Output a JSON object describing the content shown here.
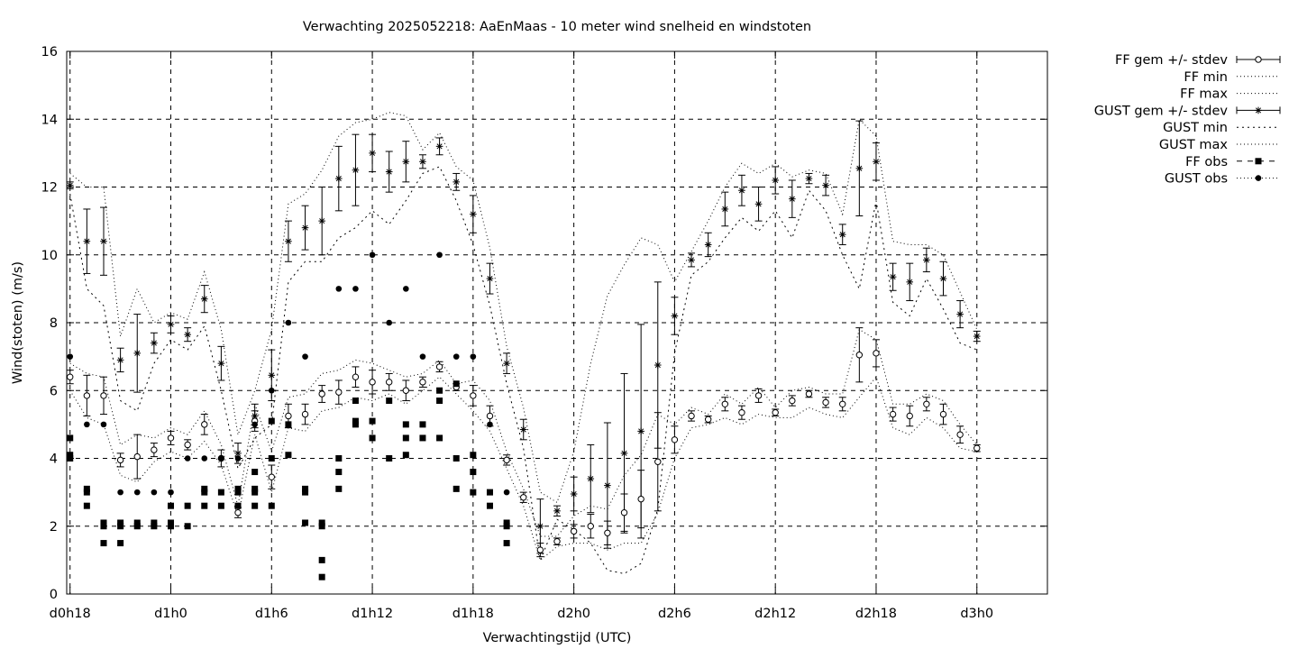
{
  "chart_data": {
    "type": "line",
    "title": "Verwachting 2025052218: AaEnMaas - 10 meter wind snelheid en windstoten",
    "xlabel": "Verwachtingstijd (UTC)",
    "ylabel": "Wind(stoten) (m/s)",
    "ylim": [
      0,
      16
    ],
    "yticks": [
      0,
      2,
      4,
      6,
      8,
      10,
      12,
      14,
      16
    ],
    "xlim": [
      17.8,
      76.2
    ],
    "xticks": [
      {
        "x": 18,
        "label": "d0h18"
      },
      {
        "x": 24,
        "label": "d1h0"
      },
      {
        "x": 30,
        "label": "d1h6"
      },
      {
        "x": 36,
        "label": "d1h12"
      },
      {
        "x": 42,
        "label": "d1h18"
      },
      {
        "x": 48,
        "label": "d2h0"
      },
      {
        "x": 54,
        "label": "d2h6"
      },
      {
        "x": 60,
        "label": "d2h12"
      },
      {
        "x": 66,
        "label": "d2h18"
      },
      {
        "x": 72,
        "label": "d3h0"
      }
    ],
    "grid": true,
    "legend_position": "outside-top-right",
    "legend": [
      "FF gem +/- stdev",
      "FF min",
      "FF max",
      "GUST gem +/- stdev",
      "GUST min",
      "GUST max",
      "FF obs",
      "GUST obs"
    ],
    "x": [
      18,
      19,
      20,
      21,
      22,
      23,
      24,
      25,
      26,
      27,
      28,
      29,
      30,
      31,
      32,
      33,
      34,
      35,
      36,
      37,
      38,
      39,
      40,
      41,
      42,
      43,
      44,
      45,
      46,
      47,
      48,
      49,
      50,
      51,
      52,
      53,
      54,
      55,
      56,
      57,
      58,
      59,
      60,
      61,
      62,
      63,
      64,
      65,
      66,
      67,
      68,
      69,
      70,
      71,
      72
    ],
    "ff_mean": [
      6.4,
      5.85,
      5.85,
      3.95,
      4.05,
      4.25,
      4.6,
      4.4,
      5.0,
      4.0,
      2.4,
      5.1,
      3.45,
      5.25,
      5.3,
      5.9,
      5.95,
      6.4,
      6.25,
      6.25,
      6.0,
      6.25,
      6.7,
      6.1,
      5.85,
      5.25,
      3.95,
      2.85,
      1.3,
      1.55,
      1.85,
      2.0,
      1.8,
      2.4,
      2.8,
      3.9,
      4.55,
      5.25,
      5.15,
      5.6,
      5.35,
      5.85,
      5.35,
      5.7,
      5.9,
      5.65,
      5.6,
      7.05,
      7.1,
      5.3,
      5.25,
      5.6,
      5.3,
      4.7,
      4.3
    ],
    "ff_sd": [
      0.2,
      0.6,
      0.55,
      0.2,
      0.65,
      0.2,
      0.2,
      0.15,
      0.3,
      0.25,
      0.15,
      0.3,
      0.35,
      0.35,
      0.3,
      0.25,
      0.35,
      0.3,
      0.35,
      0.25,
      0.3,
      0.15,
      0.15,
      0.1,
      0.3,
      0.3,
      0.15,
      0.15,
      0.2,
      0.1,
      0.2,
      0.35,
      0.35,
      0.55,
      0.85,
      1.45,
      0.4,
      0.15,
      0.1,
      0.2,
      0.2,
      0.2,
      0.1,
      0.15,
      0.1,
      0.15,
      0.2,
      0.8,
      0.4,
      0.2,
      0.3,
      0.2,
      0.3,
      0.25,
      0.1
    ],
    "ff_min": [
      6.0,
      5.2,
      5.0,
      3.5,
      3.3,
      3.9,
      4.2,
      4.0,
      4.5,
      3.8,
      2.3,
      4.7,
      3.0,
      4.9,
      4.8,
      5.4,
      5.5,
      5.8,
      5.7,
      5.9,
      5.6,
      6.0,
      6.4,
      5.9,
      5.4,
      4.8,
      3.7,
      2.6,
      1.0,
      1.4,
      1.5,
      1.5,
      1.3,
      1.5,
      1.5,
      2.4,
      4.0,
      4.9,
      5.0,
      5.2,
      5.0,
      5.3,
      5.2,
      5.2,
      5.5,
      5.3,
      5.2,
      5.8,
      6.4,
      4.9,
      4.7,
      5.2,
      4.9,
      4.3,
      4.2
    ],
    "ff_max": [
      6.8,
      6.5,
      6.4,
      4.4,
      4.7,
      4.6,
      4.9,
      4.7,
      5.4,
      4.4,
      2.6,
      5.6,
      4.2,
      5.8,
      5.9,
      6.5,
      6.6,
      6.9,
      6.8,
      6.6,
      6.4,
      6.5,
      6.9,
      6.2,
      6.3,
      5.7,
      4.2,
      3.1,
      1.7,
      1.7,
      2.3,
      2.6,
      2.5,
      3.5,
      4.1,
      5.3,
      5.0,
      5.5,
      5.3,
      5.9,
      5.6,
      6.1,
      5.5,
      6.0,
      6.1,
      5.9,
      5.9,
      7.8,
      7.5,
      5.6,
      5.6,
      5.9,
      5.7,
      5.0,
      4.4
    ],
    "gust_mean": [
      12.05,
      10.4,
      10.4,
      6.9,
      7.1,
      7.4,
      7.95,
      7.65,
      8.7,
      6.8,
      4.15,
      5.25,
      6.45,
      10.4,
      10.8,
      11.0,
      12.25,
      12.5,
      13.0,
      12.45,
      12.75,
      12.75,
      13.2,
      12.15,
      11.2,
      9.3,
      6.8,
      4.85,
      2.0,
      2.45,
      2.95,
      3.4,
      3.2,
      4.15,
      4.8,
      6.75,
      8.2,
      9.85,
      10.3,
      11.35,
      11.9,
      11.5,
      12.2,
      11.65,
      12.25,
      12.05,
      10.6,
      12.55,
      12.75,
      9.35,
      9.2,
      9.85,
      9.3,
      8.25,
      7.6
    ],
    "gust_sd": [
      0.1,
      0.95,
      1.0,
      0.35,
      1.15,
      0.3,
      0.25,
      0.2,
      0.4,
      0.5,
      0.3,
      0.35,
      0.75,
      0.6,
      0.65,
      1.0,
      0.95,
      1.05,
      0.55,
      0.6,
      0.6,
      0.2,
      0.25,
      0.25,
      0.55,
      0.45,
      0.3,
      0.3,
      0.8,
      0.15,
      0.5,
      1.0,
      1.85,
      2.35,
      3.15,
      2.45,
      0.55,
      0.2,
      0.35,
      0.5,
      0.45,
      0.5,
      0.4,
      0.55,
      0.15,
      0.3,
      0.3,
      1.4,
      0.55,
      0.4,
      0.55,
      0.35,
      0.5,
      0.4,
      0.15
    ],
    "gust_min": [
      11.8,
      9.0,
      8.5,
      5.7,
      5.4,
      6.8,
      7.5,
      7.2,
      7.9,
      6.0,
      3.7,
      4.6,
      5.0,
      9.2,
      9.8,
      9.8,
      10.5,
      10.8,
      11.3,
      10.9,
      11.6,
      12.4,
      12.6,
      11.6,
      10.3,
      8.5,
      6.2,
      4.3,
      1.0,
      2.2,
      1.9,
      1.5,
      0.7,
      0.6,
      0.9,
      2.5,
      7.1,
      9.4,
      9.8,
      10.5,
      11.1,
      10.7,
      11.3,
      10.5,
      11.9,
      11.3,
      10.0,
      9.0,
      11.6,
      8.6,
      8.2,
      9.3,
      8.4,
      7.4,
      7.2
    ],
    "gust_max": [
      12.4,
      12.0,
      12.0,
      7.6,
      9.0,
      8.0,
      8.3,
      8.1,
      9.5,
      7.8,
      4.7,
      6.0,
      7.8,
      11.5,
      11.8,
      12.5,
      13.5,
      13.9,
      14.0,
      14.2,
      14.1,
      13.1,
      13.6,
      12.6,
      12.2,
      10.2,
      7.3,
      5.5,
      3.0,
      2.7,
      4.2,
      6.8,
      8.8,
      9.7,
      10.5,
      10.3,
      9.2,
      10.1,
      11.0,
      12.0,
      12.7,
      12.4,
      12.7,
      12.3,
      12.5,
      12.4,
      11.2,
      14.0,
      13.5,
      10.4,
      10.3,
      10.3,
      10.0,
      8.9,
      7.8
    ],
    "ff_obs": [
      [
        18,
        4.6
      ],
      [
        18,
        4.1
      ],
      [
        18,
        4.0
      ],
      [
        19,
        3.1
      ],
      [
        19,
        3.0
      ],
      [
        19,
        2.6
      ],
      [
        20,
        2.1
      ],
      [
        20,
        2.0
      ],
      [
        20,
        1.5
      ],
      [
        21,
        2.1
      ],
      [
        21,
        2.0
      ],
      [
        21,
        1.5
      ],
      [
        22,
        2.1
      ],
      [
        22,
        2.0
      ],
      [
        23,
        2.1
      ],
      [
        23,
        2.0
      ],
      [
        24,
        2.6
      ],
      [
        24,
        2.1
      ],
      [
        24,
        2.0
      ],
      [
        25,
        2.6
      ],
      [
        25,
        2.0
      ],
      [
        26,
        3.1
      ],
      [
        26,
        3.0
      ],
      [
        26,
        2.6
      ],
      [
        27,
        3.0
      ],
      [
        27,
        2.6
      ],
      [
        28,
        3.1
      ],
      [
        28,
        3.0
      ],
      [
        28,
        2.6
      ],
      [
        29,
        3.6
      ],
      [
        29,
        3.1
      ],
      [
        29,
        3.0
      ],
      [
        29,
        2.6
      ],
      [
        30,
        5.1
      ],
      [
        30,
        4.0
      ],
      [
        30,
        2.6
      ],
      [
        31,
        5.0
      ],
      [
        31,
        4.1
      ],
      [
        32,
        3.1
      ],
      [
        32,
        3.0
      ],
      [
        32,
        2.1
      ],
      [
        33,
        2.1
      ],
      [
        33,
        2.0
      ],
      [
        33,
        1.0
      ],
      [
        33,
        0.5
      ],
      [
        34,
        4.0
      ],
      [
        34,
        3.6
      ],
      [
        34,
        3.1
      ],
      [
        35,
        5.7
      ],
      [
        35,
        5.1
      ],
      [
        35,
        5.0
      ],
      [
        36,
        5.1
      ],
      [
        36,
        4.6
      ],
      [
        37,
        5.7
      ],
      [
        37,
        4.0
      ],
      [
        38,
        5.0
      ],
      [
        38,
        4.6
      ],
      [
        38,
        4.1
      ],
      [
        39,
        5.0
      ],
      [
        39,
        4.6
      ],
      [
        40,
        6.0
      ],
      [
        40,
        5.7
      ],
      [
        40,
        4.6
      ],
      [
        41,
        6.2
      ],
      [
        41,
        4.0
      ],
      [
        41,
        3.1
      ],
      [
        42,
        4.1
      ],
      [
        42,
        3.6
      ],
      [
        42,
        3.0
      ],
      [
        43,
        3.0
      ],
      [
        43,
        2.6
      ],
      [
        44,
        2.1
      ],
      [
        44,
        2.0
      ],
      [
        44,
        1.5
      ]
    ],
    "gust_obs": [
      [
        18,
        7.0
      ],
      [
        19,
        5.0
      ],
      [
        20,
        5.0
      ],
      [
        21,
        3.0
      ],
      [
        22,
        3.0
      ],
      [
        23,
        3.0
      ],
      [
        24,
        3.0
      ],
      [
        25,
        4.0
      ],
      [
        26,
        4.0
      ],
      [
        27,
        4.0
      ],
      [
        28,
        4.0
      ],
      [
        29,
        5.0
      ],
      [
        30,
        6.0
      ],
      [
        31,
        8.0
      ],
      [
        32,
        7.0
      ],
      [
        33,
        2.0
      ],
      [
        34,
        9.0
      ],
      [
        35,
        9.0
      ],
      [
        36,
        10.0
      ],
      [
        37,
        8.0
      ],
      [
        38,
        9.0
      ],
      [
        39,
        7.0
      ],
      [
        40,
        10.0
      ],
      [
        41,
        7.0
      ],
      [
        42,
        7.0
      ],
      [
        43,
        5.0
      ],
      [
        44,
        3.0
      ]
    ]
  }
}
